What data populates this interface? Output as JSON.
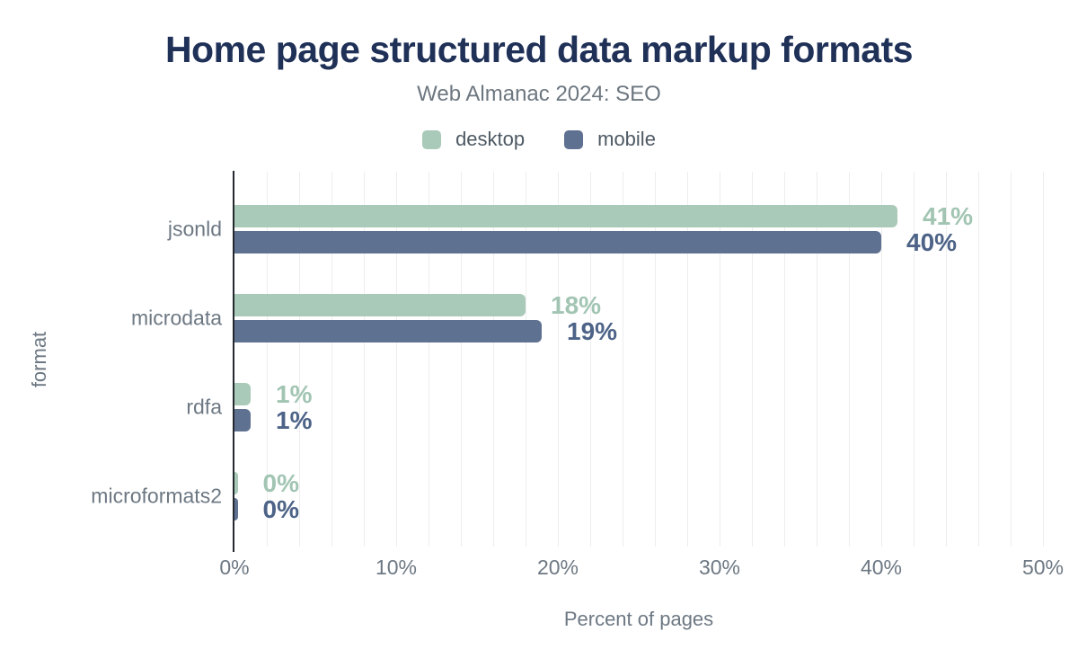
{
  "header": {
    "title": "Home page structured data markup formats",
    "subtitle": "Web Almanac 2024: SEO"
  },
  "colors": {
    "title": "#203158",
    "axis_line": "#24282f",
    "gridline": "#ededed",
    "muted_text": "#6d7883",
    "legend_text": "#4e5963"
  },
  "chart_data": {
    "type": "bar",
    "orientation": "horizontal",
    "title": "Home page structured data markup formats",
    "subtitle": "Web Almanac 2024: SEO",
    "categories": [
      "jsonld",
      "microdata",
      "rdfa",
      "microformats2"
    ],
    "series": [
      {
        "name": "desktop",
        "color": "#a9cab8",
        "label_color": "#a2c5b3",
        "values": [
          41,
          18,
          1,
          0
        ],
        "labels": [
          "41%",
          "18%",
          "1%",
          "0%"
        ]
      },
      {
        "name": "mobile",
        "color": "#5f7190",
        "label_color": "#4d6387",
        "values": [
          40,
          19,
          1,
          0
        ],
        "labels": [
          "40%",
          "19%",
          "1%",
          "0%"
        ]
      }
    ],
    "xlabel": "Percent of pages",
    "ylabel": "format",
    "xlim": [
      0,
      50
    ],
    "x_ticks": [
      {
        "value": 0,
        "label": "0%"
      },
      {
        "value": 10,
        "label": "10%"
      },
      {
        "value": 20,
        "label": "20%"
      },
      {
        "value": 30,
        "label": "30%"
      },
      {
        "value": 40,
        "label": "40%"
      },
      {
        "value": 50,
        "label": "50%"
      }
    ],
    "grid_step": 2,
    "legend_position": "top",
    "grid": "vertical-only"
  }
}
